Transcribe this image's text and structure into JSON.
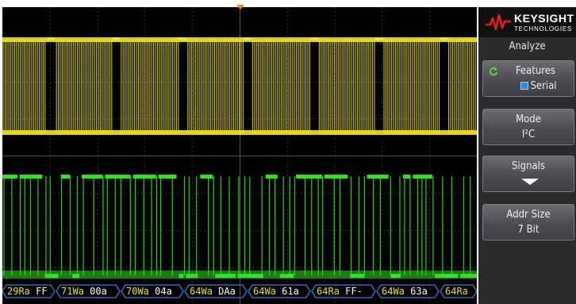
{
  "scope": {
    "channel1_color": "#f2e51e",
    "channel2_color": "#2ee51e",
    "bus_color": "#3a7fd8",
    "trigger_color": "#f08a1c",
    "decode_packets": [
      {
        "addr": "29Ra",
        "data": "FF"
      },
      {
        "addr": "71Wa",
        "data": "00a"
      },
      {
        "addr": "70Wa",
        "data": "04a"
      },
      {
        "addr": "64Wa",
        "data": "DAa"
      },
      {
        "addr": "64Wa",
        "data": "61a"
      },
      {
        "addr": "64Ra",
        "data": "FF-"
      },
      {
        "addr": "64Wa",
        "data": "63a"
      },
      {
        "addr": "64Ra",
        "data": ""
      }
    ]
  },
  "panel": {
    "brand": {
      "name": "KEYSIGHT",
      "sub": "TECHNOLOGIES"
    },
    "menu_title": "Analyze",
    "keys": {
      "features": {
        "label": "Features",
        "value": "Serial"
      },
      "mode": {
        "label": "Mode",
        "value": "I²C"
      },
      "signals": {
        "label": "Signals"
      },
      "addr_size": {
        "label": "Addr Size",
        "value": "7 Bit"
      }
    }
  }
}
